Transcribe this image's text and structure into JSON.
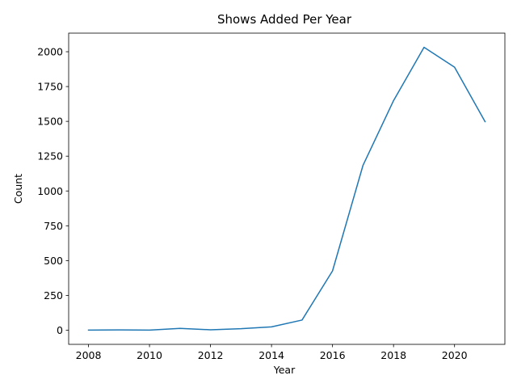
{
  "chart_data": {
    "type": "line",
    "title": "Shows Added Per Year",
    "xlabel": "Year",
    "ylabel": "Count",
    "x": [
      2008,
      2009,
      2010,
      2011,
      2012,
      2013,
      2014,
      2015,
      2016,
      2017,
      2018,
      2019,
      2020,
      2021
    ],
    "series": [
      {
        "values": [
          1,
          2,
          1,
          13,
          3,
          11,
          24,
          73,
          426,
          1185,
          1649,
          2032,
          1889,
          1498
        ],
        "color": "#1f77b4"
      }
    ],
    "xlim": [
      2007.35,
      2021.65
    ],
    "ylim": [
      -101.6,
      2133.6
    ],
    "xticks": [
      2008,
      2010,
      2012,
      2014,
      2016,
      2018,
      2020
    ],
    "yticks": [
      0,
      250,
      500,
      750,
      1000,
      1250,
      1500,
      1750,
      2000
    ],
    "grid": false,
    "legend": "none"
  }
}
